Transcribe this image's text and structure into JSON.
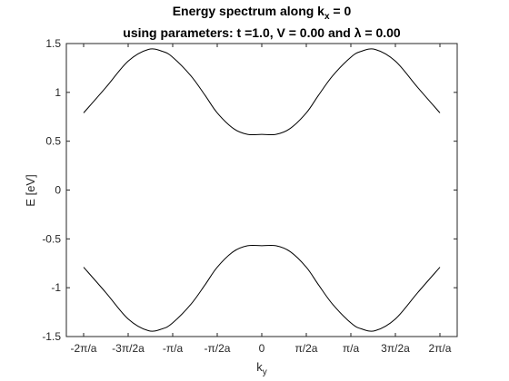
{
  "chart_data": {
    "type": "line",
    "title_line1": "Energy spectrum along k",
    "title_line1_sub": "x",
    "title_line1_tail": " = 0",
    "title_line2": "using parameters: t =1.0, V = 0.00 and λ = 0.00",
    "xlabel": "k",
    "xlabel_sub": "y",
    "ylabel": "E [eV]",
    "xlim": [
      -6.2832,
      6.2832
    ],
    "ylim": [
      -1.5,
      1.5
    ],
    "xticks": [
      -6.2832,
      -4.7124,
      -3.1416,
      -1.5708,
      0,
      1.5708,
      3.1416,
      4.7124,
      6.2832
    ],
    "xtick_labels": [
      "-2π/a",
      "-3π/2a",
      "-π/a",
      "-π/2a",
      "0",
      "π/2a",
      "π/a",
      "3π/2a",
      "2π/a"
    ],
    "yticks": [
      -1.5,
      -1,
      -0.5,
      0,
      0.5,
      1,
      1.5
    ],
    "ytick_labels": [
      "-1.5",
      "-1",
      "-0.5",
      "0",
      "0.5",
      "1",
      "1.5"
    ],
    "grid": false,
    "legend": "none",
    "line_color": "#000000",
    "series": [
      {
        "x": [
          -6.2832,
          -5.5,
          -4.7124,
          -4.0,
          -3.5,
          -3.1416,
          -2.5,
          -2.0,
          -1.5708,
          -1.0,
          -0.5,
          0,
          0.5,
          1.0,
          1.5708,
          2.0,
          2.5,
          3.1416,
          3.5,
          4.0,
          4.7124,
          5.5,
          6.2832
        ],
        "values": [
          0.79,
          1.05,
          1.32,
          1.44,
          1.42,
          1.36,
          1.17,
          0.97,
          0.79,
          0.63,
          0.57,
          0.57,
          0.57,
          0.63,
          0.79,
          0.97,
          1.17,
          1.36,
          1.42,
          1.44,
          1.32,
          1.05,
          0.79
        ]
      },
      {
        "x": [
          -6.2832,
          -5.5,
          -4.7124,
          -4.0,
          -3.5,
          -3.1416,
          -2.5,
          -2.0,
          -1.5708,
          -1.0,
          -0.5,
          0,
          0.5,
          1.0,
          1.5708,
          2.0,
          2.5,
          3.1416,
          3.5,
          4.0,
          4.7124,
          5.5,
          6.2832
        ],
        "values": [
          -0.79,
          -1.05,
          -1.32,
          -1.44,
          -1.42,
          -1.36,
          -1.17,
          -0.97,
          -0.79,
          -0.63,
          -0.57,
          -0.57,
          -0.57,
          -0.63,
          -0.79,
          -0.97,
          -1.17,
          -1.36,
          -1.42,
          -1.44,
          -1.32,
          -1.05,
          -0.79
        ]
      }
    ]
  }
}
